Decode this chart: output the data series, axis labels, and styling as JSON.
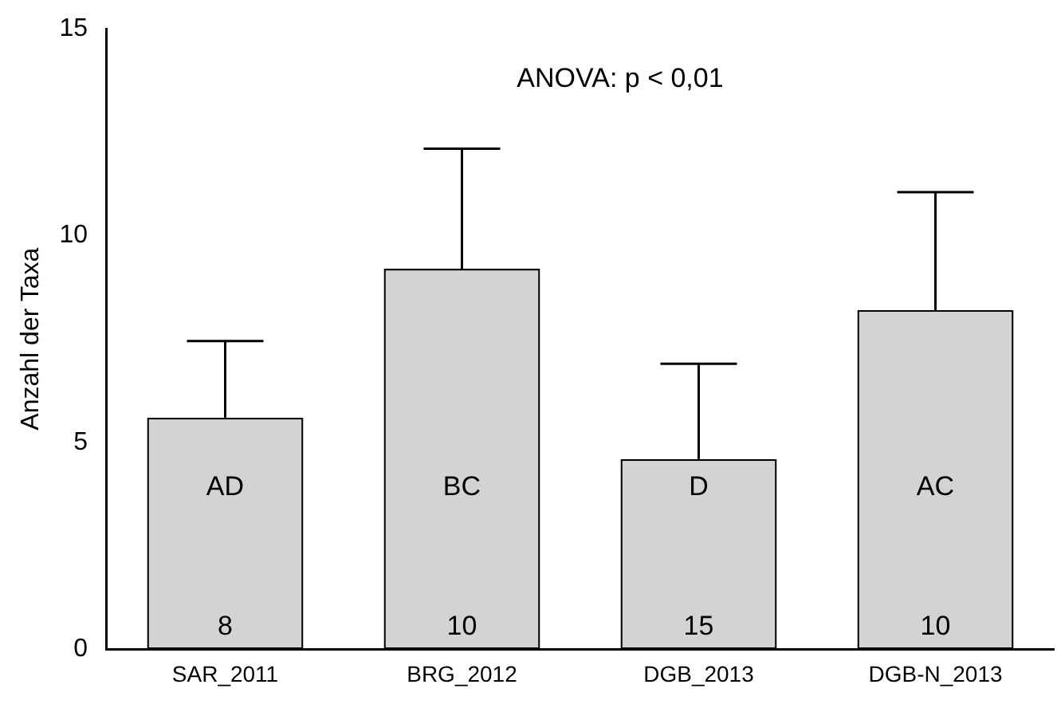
{
  "chart_data": {
    "type": "bar",
    "ylabel": "Anzahl der Taxa",
    "categories": [
      "SAR_2011",
      "BRG_2012",
      "DGB_2013",
      "DGB-N_2013"
    ],
    "values": [
      5.6,
      9.2,
      4.6,
      8.2
    ],
    "errors": [
      [
        5.6,
        7.45
      ],
      [
        9.2,
        12.1
      ],
      [
        4.6,
        6.9
      ],
      [
        8.2,
        11.05
      ]
    ],
    "color": "#d3d3d3",
    "ylim": [
      0,
      15
    ],
    "yticks": [
      0,
      5,
      10,
      15
    ],
    "grid": false,
    "legend": false,
    "annotations": [
      "ANOVA: p < 0,01",
      "AD",
      "BC",
      "D",
      "AC",
      "8",
      "10",
      "15",
      "10"
    ]
  }
}
